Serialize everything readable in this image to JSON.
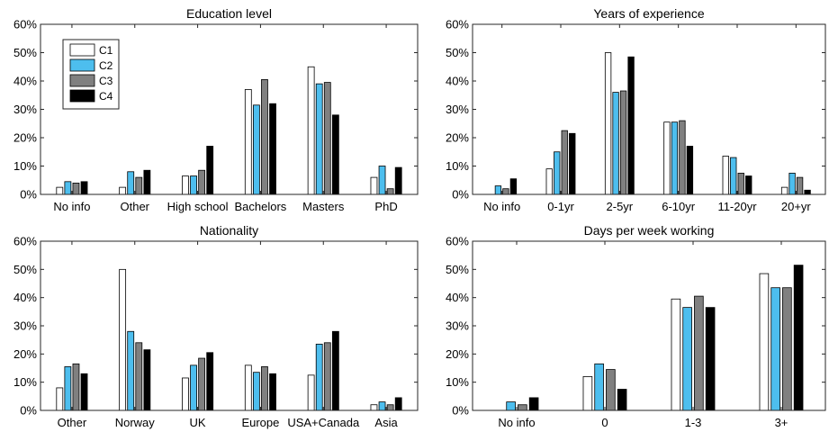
{
  "colors": {
    "C1": "#ffffff",
    "C2": "#4dbeee",
    "C3": "#808080",
    "C4": "#000000",
    "axis": "#262626"
  },
  "legend": {
    "location": "top-left",
    "entries": [
      "C1",
      "C2",
      "C3",
      "C4"
    ]
  },
  "chart_data": [
    {
      "type": "bar",
      "title": "Education level",
      "categories": [
        "No info",
        "Other",
        "High school",
        "Bachelors",
        "Masters",
        "PhD"
      ],
      "ylim": [
        0,
        60
      ],
      "yticks": [
        "0%",
        "10%",
        "20%",
        "30%",
        "40%",
        "50%",
        "60%"
      ],
      "series": [
        {
          "name": "C1",
          "values": [
            2.5,
            2.5,
            6.5,
            37,
            45,
            6
          ]
        },
        {
          "name": "C2",
          "values": [
            4.5,
            8,
            6.5,
            31.5,
            39,
            10
          ]
        },
        {
          "name": "C3",
          "values": [
            4,
            6,
            8.5,
            40.5,
            39.5,
            2
          ]
        },
        {
          "name": "C4",
          "values": [
            4.5,
            8.5,
            17,
            32,
            28,
            9.5
          ]
        }
      ],
      "legend": true
    },
    {
      "type": "bar",
      "title": "Years of experience",
      "categories": [
        "No info",
        "0-1yr",
        "2-5yr",
        "6-10yr",
        "11-20yr",
        "20+yr"
      ],
      "ylim": [
        0,
        60
      ],
      "yticks": [
        "0%",
        "10%",
        "20%",
        "30%",
        "40%",
        "50%",
        "60%"
      ],
      "series": [
        {
          "name": "C1",
          "values": [
            0,
            9,
            50,
            25.5,
            13.5,
            2.5
          ]
        },
        {
          "name": "C2",
          "values": [
            3,
            15,
            36,
            25.5,
            13,
            7.5
          ]
        },
        {
          "name": "C3",
          "values": [
            2,
            22.5,
            36.5,
            26,
            7.5,
            6
          ]
        },
        {
          "name": "C4",
          "values": [
            5.5,
            21.5,
            48.5,
            17,
            6.5,
            1.5
          ]
        }
      ],
      "legend": false
    },
    {
      "type": "bar",
      "title": "Nationality",
      "categories": [
        "Other",
        "Norway",
        "UK",
        "Europe",
        "USA+Canada",
        "Asia"
      ],
      "ylim": [
        0,
        60
      ],
      "yticks": [
        "0%",
        "10%",
        "20%",
        "30%",
        "40%",
        "50%",
        "60%"
      ],
      "series": [
        {
          "name": "C1",
          "values": [
            8,
            50,
            11.5,
            16,
            12.5,
            2
          ]
        },
        {
          "name": "C2",
          "values": [
            15.5,
            28,
            16,
            13.5,
            23.5,
            3
          ]
        },
        {
          "name": "C3",
          "values": [
            16.5,
            24,
            18.5,
            15.5,
            24,
            2
          ]
        },
        {
          "name": "C4",
          "values": [
            13,
            21.5,
            20.5,
            13,
            28,
            4.5
          ]
        }
      ],
      "legend": false
    },
    {
      "type": "bar",
      "title": "Days per week working",
      "categories": [
        "No info",
        "0",
        "1-3",
        "3+"
      ],
      "ylim": [
        0,
        60
      ],
      "yticks": [
        "0%",
        "10%",
        "20%",
        "30%",
        "40%",
        "50%",
        "60%"
      ],
      "series": [
        {
          "name": "C1",
          "values": [
            0,
            12,
            39.5,
            48.5
          ]
        },
        {
          "name": "C2",
          "values": [
            3,
            16.5,
            36.5,
            43.5
          ]
        },
        {
          "name": "C3",
          "values": [
            2,
            14.5,
            40.5,
            43.5
          ]
        },
        {
          "name": "C4",
          "values": [
            4.5,
            7.5,
            36.5,
            51.5
          ]
        }
      ],
      "legend": false
    }
  ]
}
